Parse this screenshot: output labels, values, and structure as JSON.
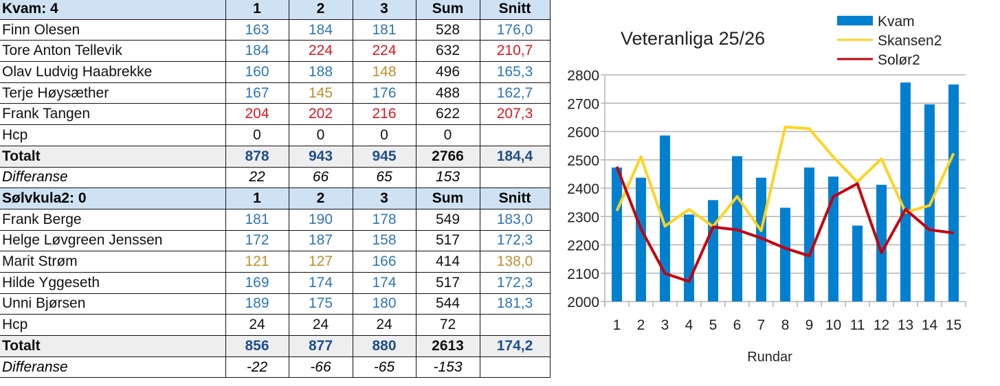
{
  "colors": {
    "b": "#2e75b6",
    "r": "#e0161e",
    "g": "#bf8f2f",
    "k": "#111111",
    "d": "#1f4e8c"
  },
  "table": {
    "rows": [
      {
        "type": "head",
        "cells": [
          "Kvam:  4",
          "1",
          "2",
          "3",
          "Sum",
          "Snitt"
        ]
      },
      {
        "type": "player",
        "cells": [
          "Finn Olesen",
          "163",
          "184",
          "181",
          "528",
          "176,0"
        ],
        "c": [
          "k",
          "b",
          "b",
          "b",
          "k",
          "b"
        ]
      },
      {
        "type": "player",
        "cells": [
          "Tore Anton Tellevik",
          "184",
          "224",
          "224",
          "632",
          "210,7"
        ],
        "c": [
          "k",
          "b",
          "r",
          "r",
          "k",
          "r"
        ]
      },
      {
        "type": "player",
        "cells": [
          "Olav Ludvig Haabrekke",
          "160",
          "188",
          "148",
          "496",
          "165,3"
        ],
        "c": [
          "k",
          "b",
          "b",
          "g",
          "k",
          "b"
        ]
      },
      {
        "type": "player",
        "cells": [
          "Terje Høysæther",
          "167",
          "145",
          "176",
          "488",
          "162,7"
        ],
        "c": [
          "k",
          "b",
          "g",
          "b",
          "k",
          "b"
        ]
      },
      {
        "type": "player",
        "cells": [
          "Frank Tangen",
          "204",
          "202",
          "216",
          "622",
          "207,3"
        ],
        "c": [
          "k",
          "r",
          "r",
          "r",
          "k",
          "r"
        ]
      },
      {
        "type": "player",
        "cells": [
          "Hcp",
          "0",
          "0",
          "0",
          "0",
          ""
        ],
        "c": [
          "k",
          "k",
          "k",
          "k",
          "k",
          "k"
        ]
      },
      {
        "type": "tot",
        "cells": [
          "Totalt",
          "878",
          "943",
          "945",
          "2766",
          "184,4"
        ],
        "c": [
          "k",
          "d",
          "d",
          "d",
          "k",
          "d"
        ]
      },
      {
        "type": "diff",
        "cells": [
          "Differanse",
          "22",
          "66",
          "65",
          "153",
          ""
        ]
      },
      {
        "type": "head",
        "cells": [
          "Sølvkula2: 0",
          "1",
          "2",
          "3",
          "Sum",
          "Snitt"
        ]
      },
      {
        "type": "player",
        "cells": [
          "Frank Berge",
          "181",
          "190",
          "178",
          "549",
          "183,0"
        ],
        "c": [
          "k",
          "b",
          "b",
          "b",
          "k",
          "b"
        ]
      },
      {
        "type": "player",
        "cells": [
          "Helge Løvgreen Jenssen",
          "172",
          "187",
          "158",
          "517",
          "172,3"
        ],
        "c": [
          "k",
          "b",
          "b",
          "b",
          "k",
          "b"
        ]
      },
      {
        "type": "player",
        "cells": [
          "Marit Strøm",
          "121",
          "127",
          "166",
          "414",
          "138,0"
        ],
        "c": [
          "k",
          "g",
          "g",
          "b",
          "k",
          "g"
        ]
      },
      {
        "type": "player",
        "cells": [
          "Hilde Yggeseth",
          "169",
          "174",
          "174",
          "517",
          "172,3"
        ],
        "c": [
          "k",
          "b",
          "b",
          "b",
          "k",
          "b"
        ]
      },
      {
        "type": "player",
        "cells": [
          "Unni Bjørsen",
          "189",
          "175",
          "180",
          "544",
          "181,3"
        ],
        "c": [
          "k",
          "b",
          "b",
          "b",
          "k",
          "b"
        ]
      },
      {
        "type": "player",
        "cells": [
          "Hcp",
          "24",
          "24",
          "24",
          "72",
          ""
        ],
        "c": [
          "k",
          "k",
          "k",
          "k",
          "k",
          "k"
        ]
      },
      {
        "type": "tot",
        "cells": [
          "Totalt",
          "856",
          "877",
          "880",
          "2613",
          "174,2"
        ],
        "c": [
          "k",
          "d",
          "d",
          "d",
          "k",
          "d"
        ]
      },
      {
        "type": "diff",
        "cells": [
          "Differanse",
          "-22",
          "-66",
          "-65",
          "-153",
          ""
        ]
      }
    ]
  },
  "chart_data": {
    "type": "bar+line",
    "title": "Veteranliga 25/26",
    "xlabel": "Rundar",
    "ylabel": "",
    "ylim": [
      2000,
      2800
    ],
    "yticks": [
      2000,
      2100,
      2200,
      2300,
      2400,
      2500,
      2600,
      2700,
      2800
    ],
    "grid": true,
    "legend": "top-right",
    "categories": [
      "1",
      "2",
      "3",
      "4",
      "5",
      "6",
      "7",
      "8",
      "9",
      "10",
      "11",
      "12",
      "13",
      "14",
      "15"
    ],
    "series": [
      {
        "name": "Kvam",
        "kind": "bar",
        "color": "#0280d0",
        "values": [
          2473,
          2437,
          2586,
          2307,
          2358,
          2513,
          2437,
          2331,
          2473,
          2441,
          2268,
          2412,
          2773,
          2696,
          2766
        ]
      },
      {
        "name": "Skansen2",
        "kind": "line",
        "color": "#ffd320",
        "values": [
          2320,
          2511,
          2266,
          2325,
          2265,
          2371,
          2250,
          2616,
          2610,
          2510,
          2422,
          2504,
          2315,
          2339,
          2523
        ]
      },
      {
        "name": "Solør2",
        "kind": "line",
        "color": "#c5000b",
        "values": [
          2476,
          2257,
          2099,
          2071,
          2263,
          2253,
          2224,
          2188,
          2161,
          2370,
          2416,
          2172,
          2325,
          2253,
          2242
        ]
      }
    ]
  }
}
